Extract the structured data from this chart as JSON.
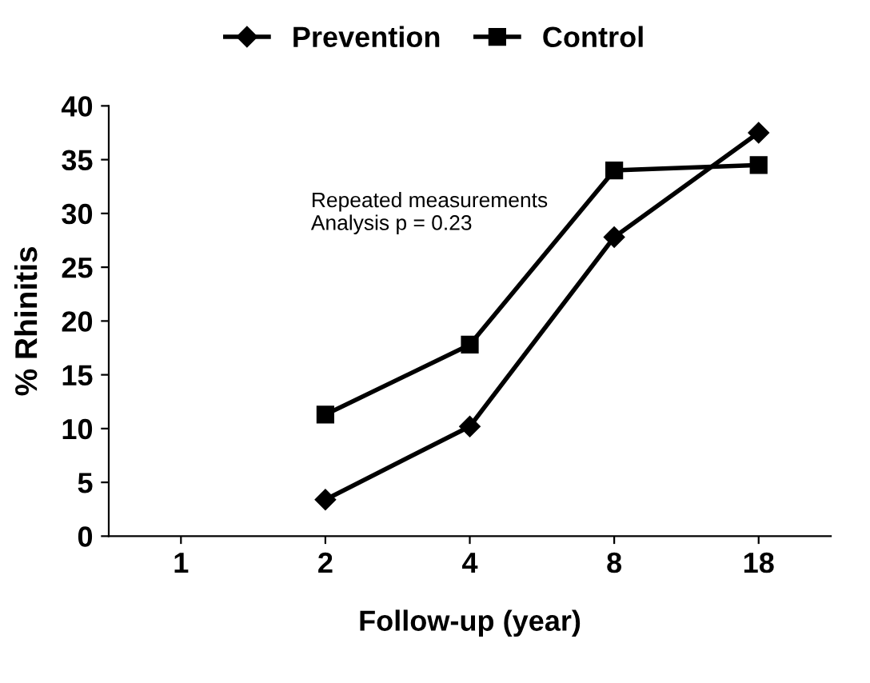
{
  "chart_data": {
    "type": "line",
    "xlabel": "Follow-up (year)",
    "ylabel": "% Rhinitis",
    "categories": [
      "1",
      "2",
      "4",
      "8",
      "18"
    ],
    "series": [
      {
        "name": "Prevention",
        "color": "#000000",
        "marker": "diamond",
        "values": [
          null,
          3.4,
          10.2,
          27.8,
          37.5
        ]
      },
      {
        "name": "Control",
        "color": "#000000",
        "marker": "square",
        "values": [
          null,
          11.3,
          17.8,
          34.0,
          34.5
        ]
      }
    ],
    "ylim": [
      0,
      40
    ],
    "yticks": [
      0,
      5,
      10,
      15,
      20,
      25,
      30,
      35,
      40
    ],
    "annotations": [
      "Repeated measurements\nAnalysis p = 0.23"
    ],
    "grid": false,
    "legend": "top",
    "line_style": "solid"
  }
}
